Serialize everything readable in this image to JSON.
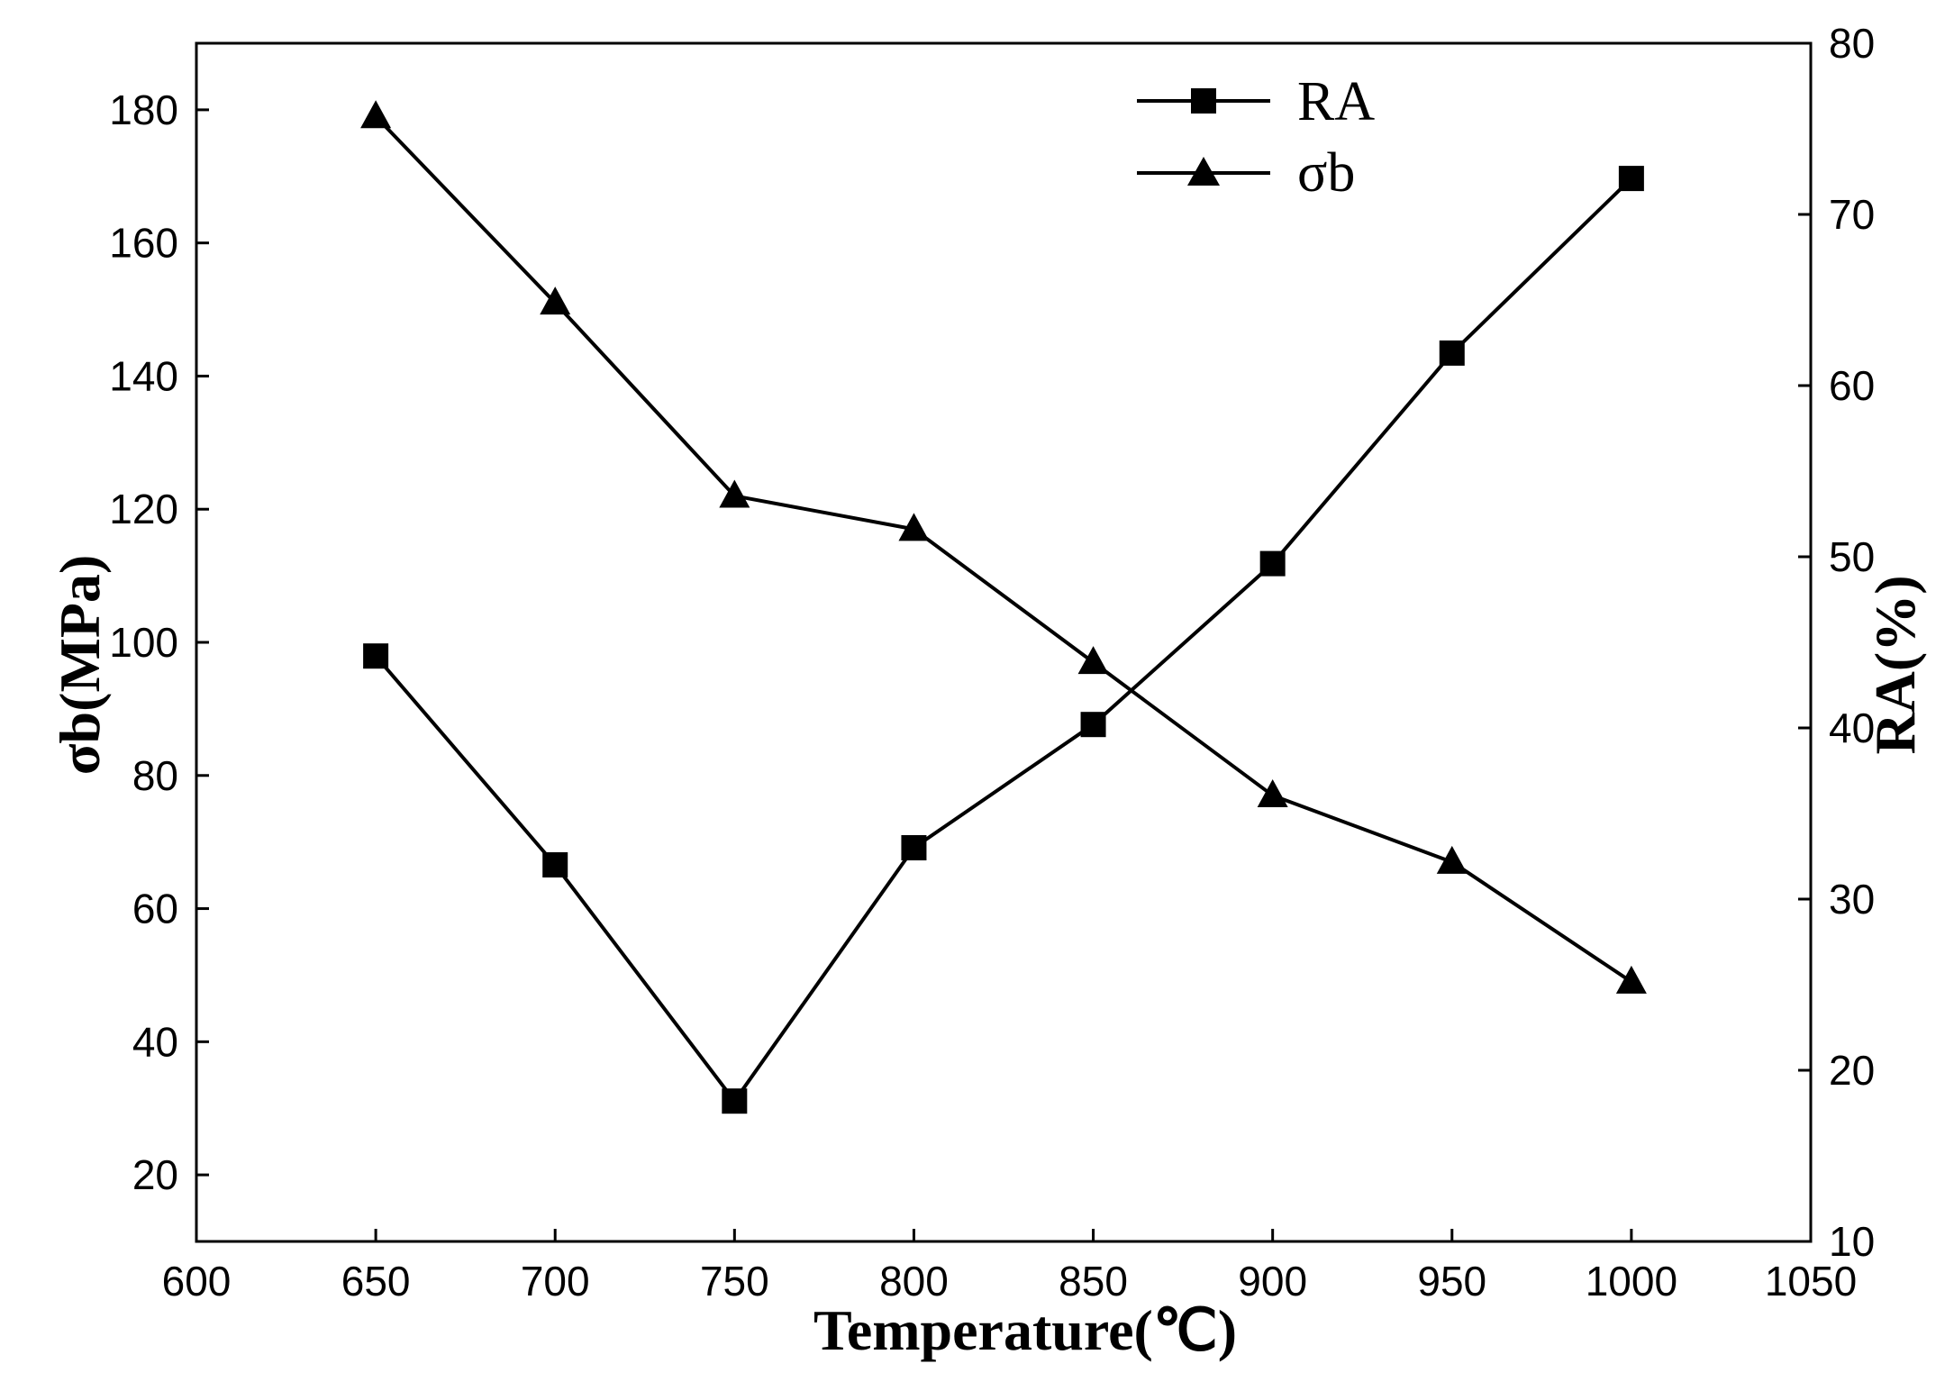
{
  "chart_data": {
    "type": "line",
    "x": [
      650,
      700,
      750,
      800,
      850,
      900,
      950,
      1000
    ],
    "xlabel": "Temperature(℃)",
    "xlim": [
      600,
      1050
    ],
    "xticks": [
      "600",
      "650",
      "700",
      "750",
      "800",
      "850",
      "900",
      "950",
      "1000",
      "1050"
    ],
    "xtick_values": [
      600,
      650,
      700,
      750,
      800,
      850,
      900,
      950,
      1000,
      1050
    ],
    "ylabel_left": "σb(MPa)",
    "ylim_left": [
      10,
      190
    ],
    "yticks_left": [
      "20",
      "40",
      "60",
      "80",
      "100",
      "120",
      "140",
      "160",
      "180"
    ],
    "ytick_values_left": [
      20,
      40,
      60,
      80,
      100,
      120,
      140,
      160,
      180
    ],
    "ylabel_right": "RA(%)",
    "ylim_right": [
      10,
      80
    ],
    "yticks_right": [
      "10",
      "20",
      "30",
      "40",
      "50",
      "60",
      "70",
      "80"
    ],
    "ytick_values_right": [
      10,
      20,
      30,
      40,
      50,
      60,
      70,
      80
    ],
    "series": [
      {
        "name": "RA",
        "axis": "right",
        "marker": "square",
        "values": [
          44.2,
          32.0,
          18.2,
          33.0,
          40.2,
          49.6,
          61.9,
          72.1
        ]
      },
      {
        "name": "σb",
        "axis": "left",
        "marker": "triangle",
        "values": [
          179,
          151,
          122,
          117,
          97,
          77,
          67,
          49
        ]
      }
    ],
    "legend_position": "top-right",
    "grid": false,
    "line_color": "#000000"
  }
}
